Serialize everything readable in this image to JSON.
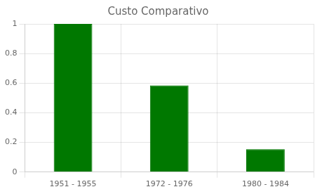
{
  "chart_data": {
    "type": "bar",
    "title": "Custo Comparativo",
    "categories": [
      "1951 - 1955",
      "1972 - 1976",
      "1980 - 1984"
    ],
    "values": [
      1.0,
      0.585,
      0.155
    ],
    "color": "#007800",
    "ylim": [
      0,
      1.0
    ],
    "yticks": [
      0,
      0.2,
      0.4,
      0.6,
      0.8,
      1.0
    ],
    "grid": true
  }
}
